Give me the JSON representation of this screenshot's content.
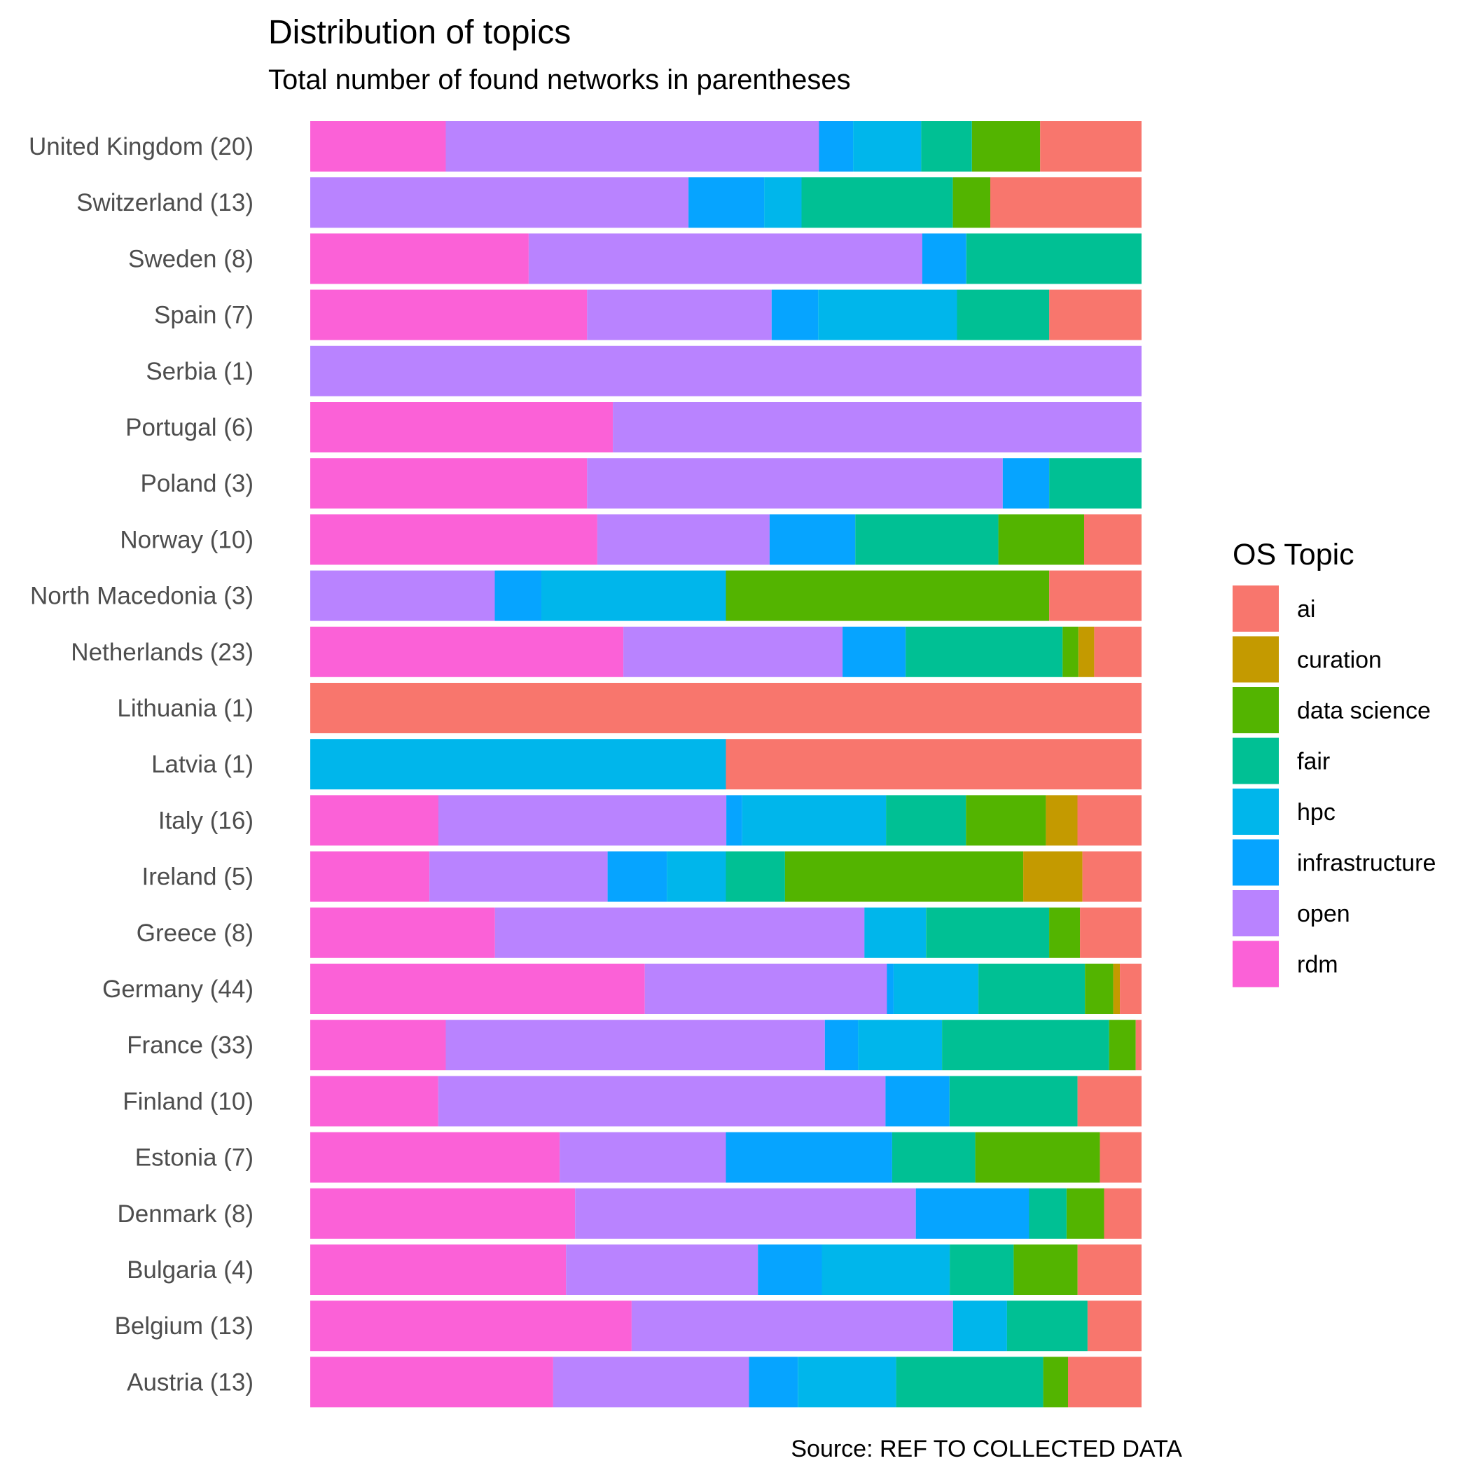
{
  "chart_data": {
    "type": "bar",
    "orientation": "horizontal",
    "stacked": "proportional",
    "title": "Distribution of topics",
    "subtitle": "Total number of found networks in parentheses",
    "caption": "Source: REF TO COLLECTED DATA",
    "legend_title": "OS Topic",
    "legend_position": "right",
    "grid": false,
    "xlim": [
      0,
      1
    ],
    "categories": [
      "United Kingdom (20)",
      "Switzerland (13)",
      "Sweden (8)",
      "Spain (7)",
      "Serbia (1)",
      "Portugal (6)",
      "Poland (3)",
      "Norway (10)",
      "North Macedonia (3)",
      "Netherlands (23)",
      "Lithuania (1)",
      "Latvia (1)",
      "Italy (16)",
      "Ireland (5)",
      "Greece (8)",
      "Germany (44)",
      "France (33)",
      "Finland (10)",
      "Estonia (7)",
      "Denmark (8)",
      "Bulgaria (4)",
      "Belgium (13)",
      "Austria (13)"
    ],
    "stack_order": [
      "rdm",
      "open",
      "infrastructure",
      "hpc",
      "fair",
      "data science",
      "curation",
      "ai"
    ],
    "series": [
      {
        "name": "ai",
        "color": "#F8766D",
        "values": [
          0.122,
          0.182,
          0,
          0.111,
          0,
          0,
          0,
          0.069,
          0.111,
          0.057,
          1.0,
          0.5,
          0.077,
          0.071,
          0.074,
          0.026,
          0.007,
          0.077,
          0.05,
          0.045,
          0.077,
          0.065,
          0.089
        ]
      },
      {
        "name": "curation",
        "color": "#C49A00",
        "values": [
          0,
          0,
          0,
          0,
          0,
          0,
          0,
          0,
          0,
          0.019,
          0,
          0,
          0.038,
          0.071,
          0,
          0.008,
          0,
          0,
          0,
          0,
          0,
          0,
          0
        ]
      },
      {
        "name": "data science",
        "color": "#53B400",
        "values": [
          0.082,
          0.045,
          0,
          0,
          0,
          0,
          0,
          0.103,
          0.389,
          0.019,
          0,
          0,
          0.096,
          0.286,
          0.037,
          0.034,
          0.032,
          0,
          0.15,
          0.045,
          0.077,
          0,
          0.03
        ]
      },
      {
        "name": "fair",
        "color": "#00C094",
        "values": [
          0.061,
          0.182,
          0.211,
          0.111,
          0,
          0,
          0.111,
          0.172,
          0,
          0.189,
          0,
          0,
          0.096,
          0.071,
          0.148,
          0.128,
          0.201,
          0.154,
          0.1,
          0.045,
          0.077,
          0.097,
          0.178
        ]
      },
      {
        "name": "hpc",
        "color": "#00B6EB",
        "values": [
          0.082,
          0.045,
          0,
          0.167,
          0,
          0,
          0,
          0,
          0.222,
          0,
          0,
          0.5,
          0.173,
          0.071,
          0.074,
          0.102,
          0.101,
          0,
          0,
          0,
          0.154,
          0.065,
          0.119
        ]
      },
      {
        "name": "infrastructure",
        "color": "#06A4FF",
        "values": [
          0.041,
          0.091,
          0.053,
          0.056,
          0,
          0,
          0.056,
          0.103,
          0.056,
          0.076,
          0,
          0,
          0.019,
          0.071,
          0,
          0.008,
          0.04,
          0.077,
          0.2,
          0.136,
          0.077,
          0,
          0.059
        ]
      },
      {
        "name": "open",
        "color": "#B983FF",
        "values": [
          0.449,
          0.455,
          0.474,
          0.222,
          1.0,
          0.636,
          0.5,
          0.207,
          0.222,
          0.264,
          0,
          0,
          0.346,
          0.214,
          0.444,
          0.291,
          0.456,
          0.538,
          0.2,
          0.409,
          0.231,
          0.387,
          0.237
        ]
      },
      {
        "name": "rdm",
        "color": "#FB61D7",
        "values": [
          0.163,
          0,
          0.263,
          0.333,
          0,
          0.364,
          0.333,
          0.345,
          0,
          0.377,
          0,
          0,
          0.154,
          0.143,
          0.222,
          0.402,
          0.163,
          0.154,
          0.3,
          0.318,
          0.308,
          0.387,
          0.294
        ]
      }
    ]
  }
}
